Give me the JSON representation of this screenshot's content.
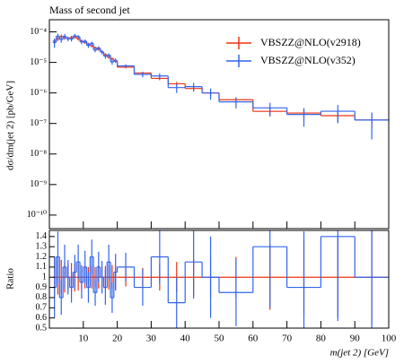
{
  "chart_data": {
    "type": "histogram",
    "title": "Mass of second jet",
    "xlabel": "m(jet 2) [GeV]",
    "ylabel": "dσ/dm(jet 2) [pb/GeV]",
    "bins": [
      1,
      2,
      3,
      4,
      5,
      6,
      7,
      8,
      9,
      10,
      11,
      12,
      13,
      14,
      15,
      16,
      17,
      18,
      19,
      20,
      25,
      30,
      35,
      40,
      45,
      50,
      60,
      70,
      80,
      90,
      100
    ],
    "xlim": [
      0,
      100
    ],
    "xticks": [
      10,
      20,
      30,
      40,
      50,
      60,
      70,
      80,
      90,
      100
    ],
    "log_y": true,
    "ylim": [
      3.6e-11,
      0.00025
    ],
    "yticks": [
      {
        "value": 1e-10,
        "label": "10⁻¹⁰"
      },
      {
        "value": 1e-09,
        "label": "10⁻⁹"
      },
      {
        "value": 1e-08,
        "label": "10⁻⁸"
      },
      {
        "value": 1e-07,
        "label": "10⁻⁷"
      },
      {
        "value": 1e-06,
        "label": "10⁻⁶"
      },
      {
        "value": 1e-05,
        "label": "10⁻⁵"
      },
      {
        "value": 0.0001,
        "label": "10⁻⁴"
      }
    ],
    "legend": "upper right",
    "series": [
      {
        "name": "VBSZZ@NLO(v2918)",
        "color": "#ee3311",
        "values": [
          5e-05,
          6e-05,
          7e-05,
          6.5e-05,
          6e-05,
          6.5e-05,
          7e-05,
          6e-05,
          5e-05,
          4.5e-05,
          4e-05,
          3.5e-05,
          3e-05,
          2.7e-05,
          2.2e-05,
          1.8e-05,
          1.5e-05,
          1.3e-05,
          1.1e-05,
          7e-06,
          4.5e-06,
          3e-06,
          2e-06,
          1.4e-06,
          1e-06,
          6e-07,
          2.5e-07,
          2.2e-07,
          1.8e-07,
          1.3e-07
        ],
        "errors": [
          1e-05,
          1e-05,
          1.2e-05,
          1e-05,
          8e-06,
          9e-06,
          1e-05,
          8e-06,
          6e-06,
          5e-06,
          4e-06,
          4e-06,
          3e-06,
          3e-06,
          2.5e-06,
          2e-06,
          1.8e-06,
          1.5e-06,
          1.3e-06,
          6e-07,
          4e-07,
          4e-07,
          3e-07,
          2.5e-07,
          2e-07,
          1.2e-07,
          8e-08,
          8e-08,
          7e-08,
          6e-08
        ]
      },
      {
        "name": "VBSZZ@NLO(v352)",
        "color": "#3366ee",
        "values": [
          4.5e-05,
          7.2e-05,
          5.6e-05,
          7.15e-05,
          6e-05,
          5.85e-05,
          7.35e-05,
          6.9e-05,
          4.75e-05,
          4.95e-05,
          3.6e-05,
          4.2e-05,
          2.55e-05,
          2.97e-05,
          2.2e-05,
          1.62e-05,
          1.725e-05,
          1.04e-05,
          1.155e-05,
          7.7e-06,
          4.05e-06,
          3.6e-06,
          1.5e-06,
          1.61e-06,
          1e-06,
          5.1e-07,
          3.25e-07,
          1.98e-07,
          2.52e-07,
          1.3e-07
        ],
        "errors": [
          1.5e-05,
          1.5e-05,
          1.2e-05,
          1.4e-05,
          1e-05,
          1e-05,
          1.2e-05,
          1e-05,
          8e-06,
          7e-06,
          6e-06,
          6e-06,
          4e-06,
          4e-06,
          3.5e-06,
          3e-06,
          2.5e-06,
          2e-06,
          2e-06,
          1e-06,
          8e-07,
          8e-07,
          5e-07,
          5e-07,
          4e-07,
          2e-07,
          1.5e-07,
          1.2e-07,
          1.5e-07,
          1e-07
        ]
      }
    ],
    "ratio": {
      "ylabel": "Ratio",
      "ylim": [
        0.5,
        1.46
      ],
      "yticks": [
        0.5,
        0.6,
        0.7,
        0.8,
        0.9,
        1,
        1.1,
        1.2,
        1.3,
        1.4
      ],
      "series": [
        {
          "color": "#ee3311",
          "values": [
            1,
            1,
            1,
            1,
            1,
            1,
            1,
            1,
            1,
            1,
            1,
            1,
            1,
            1,
            1,
            1,
            1,
            1,
            1,
            1,
            1,
            1,
            1,
            1,
            1,
            1,
            1,
            1,
            1,
            1
          ],
          "errors": [
            0.2,
            0.17,
            0.17,
            0.15,
            0.13,
            0.14,
            0.14,
            0.13,
            0.12,
            0.11,
            0.1,
            0.11,
            0.1,
            0.11,
            0.11,
            0.11,
            0.12,
            0.12,
            0.12,
            0.09,
            0.09,
            0.13,
            0.15,
            0.18,
            0.2,
            0.2,
            0.32,
            0.36,
            0.39,
            0.46
          ]
        },
        {
          "color": "#3366ee",
          "values": [
            0.9,
            1.2,
            0.8,
            1.1,
            1.0,
            0.9,
            1.05,
            1.15,
            0.95,
            1.1,
            0.9,
            1.2,
            0.85,
            1.1,
            1.0,
            0.9,
            1.15,
            0.8,
            1.05,
            1.1,
            0.9,
            1.2,
            0.75,
            1.15,
            1.0,
            0.85,
            1.3,
            0.9,
            1.4,
            1.0
          ],
          "errors": [
            0.3,
            0.25,
            0.17,
            0.22,
            0.17,
            0.15,
            0.17,
            0.17,
            0.16,
            0.16,
            0.15,
            0.17,
            0.13,
            0.15,
            0.16,
            0.17,
            0.17,
            0.15,
            0.18,
            0.14,
            0.18,
            0.27,
            0.25,
            0.36,
            0.4,
            0.33,
            0.6,
            0.55,
            0.83,
            0.77
          ]
        }
      ]
    }
  }
}
